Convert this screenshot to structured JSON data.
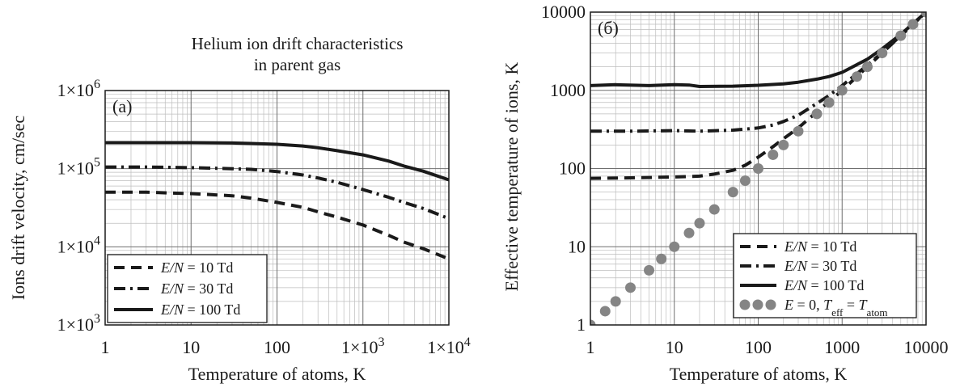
{
  "chart_data": [
    {
      "type": "line",
      "title": [
        "Helium ion drift characteristics",
        "in parent gas"
      ],
      "panel_label": "(a)",
      "xlabel": "Temperature of atoms, K",
      "ylabel": "Ions drift velocity, cm/sec",
      "x_scale": "log",
      "y_scale": "log",
      "xlim": [
        1,
        10000
      ],
      "ylim": [
        1000,
        1000000
      ],
      "x_ticks": [
        1,
        10,
        100,
        1000,
        10000
      ],
      "x_tick_labels": [
        {
          "text": "1"
        },
        {
          "text": "10"
        },
        {
          "text": "100"
        },
        {
          "base": "1×10",
          "exp": "3"
        },
        {
          "base": "1×10",
          "exp": "4"
        }
      ],
      "y_ticks": [
        1000,
        10000,
        100000,
        1000000
      ],
      "y_tick_labels": [
        {
          "base": "1×10",
          "exp": "3"
        },
        {
          "base": "1×10",
          "exp": "4"
        },
        {
          "base": "1×10",
          "exp": "5"
        },
        {
          "base": "1×10",
          "exp": "6"
        }
      ],
      "grid": true,
      "legend_position": "bottom-left",
      "series": [
        {
          "name": "E/N = 10 Td",
          "legend_italic": "E/N",
          "legend_rest": " = 10 Td",
          "style": "dashed",
          "x": [
            1,
            3,
            10,
            30,
            50,
            100,
            200,
            300,
            500,
            1000,
            2000,
            3000,
            5000,
            10000
          ],
          "y": [
            50000,
            50000,
            48000,
            45000,
            42000,
            37000,
            32000,
            28000,
            24000,
            19000,
            14000,
            11500,
            9500,
            7000
          ]
        },
        {
          "name": "E/N = 30 Td",
          "legend_italic": "E/N",
          "legend_rest": " = 30 Td",
          "style": "dashdot",
          "x": [
            1,
            3,
            10,
            30,
            50,
            100,
            200,
            300,
            500,
            1000,
            2000,
            3000,
            5000,
            10000
          ],
          "y": [
            105000,
            105000,
            103000,
            100000,
            98000,
            92000,
            83000,
            76000,
            67000,
            54000,
            43000,
            37000,
            31000,
            23000
          ]
        },
        {
          "name": "E/N = 100 Td",
          "legend_italic": "E/N",
          "legend_rest": " = 100 Td",
          "style": "solid",
          "x": [
            1,
            3,
            10,
            30,
            50,
            100,
            200,
            300,
            500,
            1000,
            2000,
            3000,
            5000,
            10000
          ],
          "y": [
            215000,
            215000,
            215000,
            213000,
            210000,
            205000,
            195000,
            185000,
            170000,
            150000,
            125000,
            108000,
            93000,
            72000
          ]
        }
      ]
    },
    {
      "type": "line",
      "title": "",
      "panel_label": "(б)",
      "xlabel": "Temperature of atoms, K",
      "ylabel": "Effective temperature of ions, K",
      "x_scale": "log",
      "y_scale": "log",
      "xlim": [
        1,
        10000
      ],
      "ylim": [
        1,
        10000
      ],
      "x_ticks": [
        1,
        10,
        100,
        1000,
        10000
      ],
      "x_tick_labels": [
        {
          "text": "1"
        },
        {
          "text": "10"
        },
        {
          "text": "100"
        },
        {
          "text": "1000"
        },
        {
          "text": "10000"
        }
      ],
      "y_ticks": [
        1,
        10,
        100,
        1000,
        10000
      ],
      "y_tick_labels": [
        {
          "text": "1"
        },
        {
          "text": "10"
        },
        {
          "text": "100"
        },
        {
          "text": "1000"
        },
        {
          "text": "10000"
        }
      ],
      "grid": true,
      "legend_position": "bottom-right",
      "series": [
        {
          "name": "E/N = 10 Td",
          "legend_italic": "E/N",
          "legend_rest": " = 10 Td",
          "style": "dashed",
          "x": [
            1,
            3,
            10,
            20,
            30,
            50,
            70,
            100,
            150,
            200,
            300,
            500,
            700,
            1000,
            2000,
            3000,
            5000,
            10000
          ],
          "y": [
            75,
            76,
            78,
            80,
            85,
            95,
            110,
            140,
            190,
            240,
            330,
            530,
            720,
            1000,
            2000,
            3000,
            5000,
            10000
          ]
        },
        {
          "name": "E/N = 30 Td",
          "legend_italic": "E/N",
          "legend_rest": " = 30 Td",
          "style": "dashdot",
          "x": [
            1,
            3,
            10,
            20,
            50,
            100,
            150,
            200,
            300,
            500,
            700,
            1000,
            2000,
            3000,
            5000,
            10000
          ],
          "y": [
            300,
            300,
            305,
            300,
            310,
            330,
            360,
            400,
            480,
            680,
            860,
            1150,
            2100,
            3050,
            5000,
            10000
          ]
        },
        {
          "name": "E/N = 100 Td",
          "legend_italic": "E/N",
          "legend_rest": " = 100 Td",
          "style": "solid",
          "x": [
            1,
            2,
            5,
            10,
            15,
            20,
            50,
            100,
            200,
            300,
            500,
            700,
            1000,
            2000,
            3000,
            5000,
            10000
          ],
          "y": [
            1150,
            1180,
            1150,
            1180,
            1170,
            1120,
            1130,
            1160,
            1210,
            1270,
            1390,
            1500,
            1700,
            2500,
            3400,
            5200,
            10000
          ]
        },
        {
          "name": "E = 0, Teff = Tatom",
          "style": "dots",
          "legend_parts": [
            {
              "t": "E",
              "italic": true
            },
            {
              "t": " = 0, "
            },
            {
              "t": "T",
              "italic": true
            },
            {
              "t": "eff",
              "sub": true
            },
            {
              "t": " = "
            },
            {
              "t": "T",
              "italic": true
            },
            {
              "t": "atom",
              "sub": true
            }
          ],
          "x": [
            1,
            1.5,
            2,
            3,
            5,
            7,
            10,
            15,
            20,
            30,
            50,
            70,
            100,
            150,
            200,
            300,
            500,
            700,
            1000,
            1500,
            2000,
            3000,
            5000,
            7000,
            10000
          ],
          "y": [
            1,
            1.5,
            2,
            3,
            5,
            7,
            10,
            15,
            20,
            30,
            50,
            70,
            100,
            150,
            200,
            300,
            500,
            700,
            1000,
            1500,
            2000,
            3000,
            5000,
            7000,
            10000
          ]
        }
      ]
    }
  ]
}
